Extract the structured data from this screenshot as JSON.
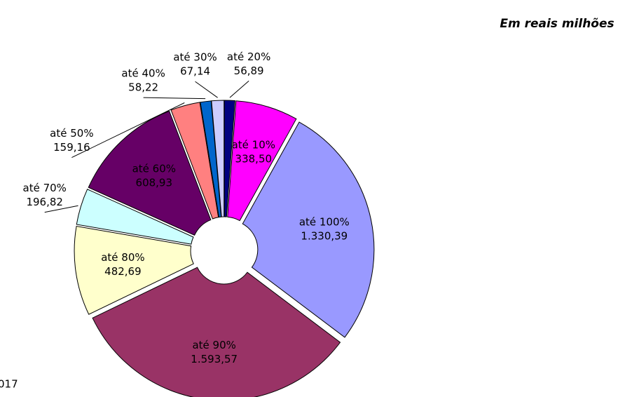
{
  "chart_data": {
    "type": "donut",
    "title": "Em reais milhões",
    "footnote": "017",
    "categories": [
      "até 20%",
      "até 10%",
      "até 100%",
      "até 90%",
      "até 80%",
      "até 70%",
      "até 60%",
      "até 50%",
      "até 40%",
      "até 30%"
    ],
    "values": [
      56.89,
      338.5,
      1330.39,
      1593.57,
      482.69,
      196.82,
      608.93,
      159.16,
      58.22,
      67.14
    ],
    "value_labels": [
      "56,89",
      "338,50",
      "1.330,39",
      "1.593,57",
      "482,69",
      "196,82",
      "608,93",
      "159,16",
      "58,22",
      "67,14"
    ],
    "colors": [
      "#000080",
      "#ff00ff",
      "#9999ff",
      "#993366",
      "#ffffcc",
      "#ccffff",
      "#660066",
      "#ff8080",
      "#0066cc",
      "#ccccff"
    ]
  }
}
